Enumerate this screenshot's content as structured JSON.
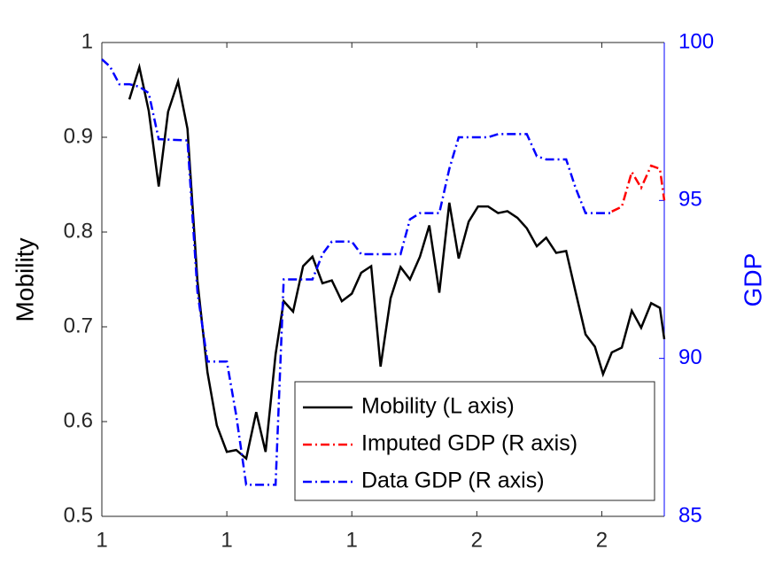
{
  "chart_data": {
    "type": "line",
    "xlim": [
      0,
      90
    ],
    "xticks": [
      {
        "value": 0,
        "label": "1"
      },
      {
        "value": 20,
        "label": "1"
      },
      {
        "value": 40,
        "label": "1"
      },
      {
        "value": 60,
        "label": "2"
      },
      {
        "value": 80,
        "label": "2"
      }
    ],
    "ylabel": "Mobility",
    "ylim": [
      0.5,
      1
    ],
    "yticks": [
      0.5,
      0.6,
      0.7,
      0.8,
      0.9,
      1
    ],
    "y2label": "GDP",
    "y2lim": [
      85,
      100
    ],
    "y2ticks": [
      85,
      90,
      95,
      100
    ],
    "y2color": "#0000ff",
    "legend": "lower right",
    "grid": false,
    "series": [
      {
        "name": "Mobility (L axis)",
        "color": "#000000",
        "axis": "y",
        "style": "solid",
        "x": [
          4.4,
          6.0,
          7.5,
          9.1,
          10.6,
          12.2,
          13.7,
          15.3,
          16.9,
          18.4,
          20.0,
          21.5,
          23.1,
          24.7,
          26.2,
          27.8,
          29.1,
          30.6,
          32.2,
          33.7,
          35.3,
          36.8,
          38.4,
          40.0,
          41.5,
          43.1,
          44.6,
          46.2,
          47.8,
          49.3,
          50.9,
          52.4,
          54.0,
          55.6,
          57.1,
          58.7,
          60.2,
          61.8,
          63.4,
          64.9,
          66.5,
          68.0,
          69.6,
          71.1,
          72.7,
          74.3,
          75.8,
          77.4,
          78.9,
          80.2,
          81.6,
          83.2,
          84.8,
          86.3,
          87.9,
          89.3,
          90
        ],
        "values": [
          0.94,
          0.974,
          0.928,
          0.848,
          0.927,
          0.959,
          0.909,
          0.748,
          0.652,
          0.596,
          0.568,
          0.57,
          0.561,
          0.61,
          0.568,
          0.671,
          0.727,
          0.716,
          0.764,
          0.774,
          0.746,
          0.749,
          0.727,
          0.735,
          0.757,
          0.764,
          0.658,
          0.73,
          0.763,
          0.75,
          0.774,
          0.807,
          0.736,
          0.831,
          0.772,
          0.811,
          0.827,
          0.827,
          0.82,
          0.822,
          0.815,
          0.804,
          0.785,
          0.794,
          0.778,
          0.78,
          0.737,
          0.692,
          0.679,
          0.65,
          0.673,
          0.678,
          0.717,
          0.699,
          0.725,
          0.72,
          0.687
        ]
      },
      {
        "name": "Imputed GDP (R axis)",
        "color": "#ff0000",
        "axis": "y2",
        "style": "dashdot",
        "x": [
          81.6,
          83.2,
          84.8,
          86.3,
          87.9,
          89.3,
          90
        ],
        "values": [
          94.65,
          94.8,
          95.9,
          95.4,
          96.1,
          96.0,
          95.0
        ]
      },
      {
        "name": "Data GDP (R axis)",
        "color": "#0000ff",
        "axis": "y2",
        "style": "dashdot",
        "x": [
          0,
          1.3,
          2.8,
          4.4,
          6.0,
          7.5,
          9.1,
          13.7,
          15.3,
          16.9,
          20.0,
          21.5,
          23.1,
          27.8,
          29.1,
          33.7,
          35.3,
          36.8,
          40.0,
          41.5,
          47.8,
          49.3,
          50.9,
          54.0,
          55.6,
          57.1,
          61.8,
          63.4,
          68.0,
          69.6,
          71.1,
          74.3,
          75.8,
          77.4,
          81.6
        ],
        "values": [
          99.47,
          99.24,
          98.68,
          98.68,
          98.6,
          98.4,
          96.94,
          96.9,
          92.1,
          89.9,
          89.9,
          88.2,
          86.0,
          86.0,
          92.5,
          92.5,
          93.3,
          93.7,
          93.7,
          93.3,
          93.3,
          94.4,
          94.6,
          94.6,
          96.0,
          97.0,
          97.0,
          97.1,
          97.1,
          96.4,
          96.3,
          96.3,
          95.4,
          94.6,
          94.6
        ]
      }
    ]
  }
}
